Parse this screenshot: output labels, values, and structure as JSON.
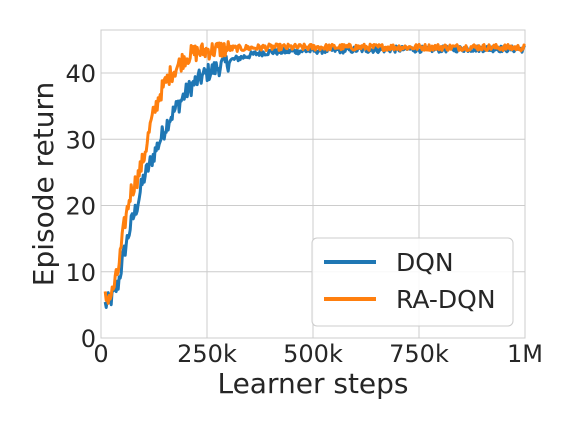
{
  "chart_data": {
    "type": "line",
    "xlabel": "Learner steps",
    "ylabel": "Episode return",
    "xlim": [
      0,
      1000000
    ],
    "ylim": [
      0,
      46.5
    ],
    "x_ticks": [
      {
        "value": 0,
        "label": "0"
      },
      {
        "value": 250000,
        "label": "250k"
      },
      {
        "value": 500000,
        "label": "500k"
      },
      {
        "value": 750000,
        "label": "750k"
      },
      {
        "value": 1000000,
        "label": "1M"
      }
    ],
    "y_ticks": [
      {
        "value": 0,
        "label": "0"
      },
      {
        "value": 10,
        "label": "10"
      },
      {
        "value": 20,
        "label": "20"
      },
      {
        "value": 30,
        "label": "30"
      },
      {
        "value": 40,
        "label": "40"
      }
    ],
    "grid": true,
    "legend_position": "lower-right",
    "series": [
      {
        "name": "DQN",
        "color": "#1f77b4",
        "x": [
          10000,
          25000,
          40000,
          55000,
          70000,
          85000,
          100000,
          120000,
          140000,
          160000,
          180000,
          200000,
          220000,
          250000,
          280000,
          310000,
          340000,
          370000,
          400000,
          450000,
          500000,
          600000,
          700000,
          800000,
          900000,
          1000000
        ],
        "y": [
          5,
          6,
          8,
          13,
          17,
          20,
          24,
          27,
          30,
          33,
          35,
          37,
          38.5,
          40,
          41,
          42,
          42.5,
          43,
          43.2,
          43.3,
          43.4,
          43.5,
          43.6,
          43.6,
          43.7,
          43.6
        ]
      },
      {
        "name": "RA-DQN",
        "color": "#ff7f0e",
        "x": [
          10000,
          25000,
          40000,
          55000,
          70000,
          85000,
          100000,
          120000,
          140000,
          160000,
          180000,
          200000,
          220000,
          250000,
          280000,
          310000,
          350000,
          400000,
          450000,
          500000,
          600000,
          700000,
          800000,
          900000,
          1000000
        ],
        "y": [
          6,
          6.5,
          10,
          17,
          22,
          24,
          27,
          33,
          37,
          39.5,
          41,
          42.5,
          43,
          43.4,
          43.6,
          43.7,
          43.8,
          43.9,
          43.9,
          43.9,
          43.9,
          43.9,
          43.9,
          43.9,
          43.8
        ]
      }
    ]
  }
}
